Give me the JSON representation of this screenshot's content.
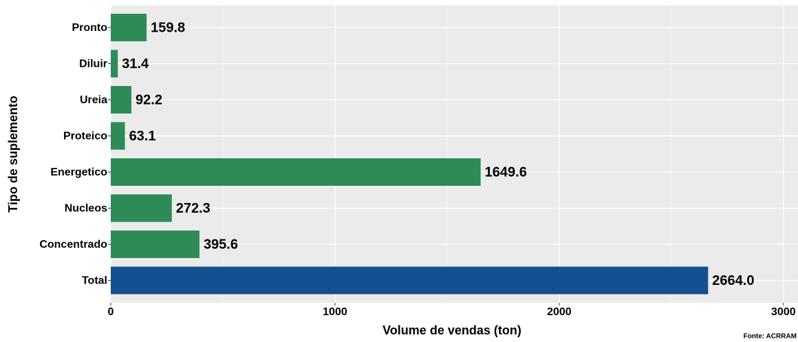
{
  "chart_data": {
    "type": "bar",
    "orientation": "horizontal",
    "x_label": "Volume de vendas (ton)",
    "y_label": "Tipo de suplemento",
    "caption": "Fonte: ACRRAM",
    "categories": [
      "Pronto",
      "Diluir",
      "Ureia",
      "Proteico",
      "Energetico",
      "Nucleos",
      "Concentrado",
      "Total"
    ],
    "values": [
      159.8,
      31.4,
      92.2,
      63.1,
      1649.6,
      272.3,
      395.6,
      2664
    ],
    "value_labels": [
      "159.8",
      "31.4",
      "92.2",
      "63.1",
      "1649.6",
      "272.3",
      "395.6",
      "2664.0"
    ],
    "colors": [
      "#2e8b57",
      "#2e8b57",
      "#2e8b57",
      "#2e8b57",
      "#2e8b57",
      "#2e8b57",
      "#2e8b57",
      "#12508f"
    ],
    "xlim": [
      0,
      3065
    ],
    "xticks": [
      0,
      1000,
      2000,
      3000
    ],
    "grid": true
  }
}
